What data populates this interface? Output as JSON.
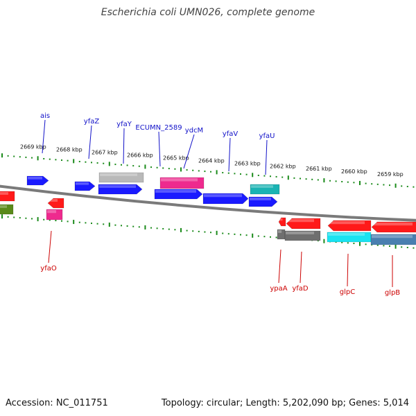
{
  "title": "Escherichia coli UMN026, complete genome",
  "footer": {
    "accession": "Accession: NC_011751",
    "summary": "Topology: circular; Length: 5,202,090 bp; Genes: 5,014"
  },
  "colors": {
    "backbone": "#7a7a7a",
    "ticks": "#1a8a1a",
    "top_label": "#1010c8",
    "bottom_label": "#cc0000",
    "blue": "#1a1aff",
    "red": "#ff1a1a",
    "gray": "#b9b9b9",
    "dark_gray": "#6f6f6f",
    "magenta": "#ee2a8e",
    "teal": "#1ab3b3",
    "cyan": "#19e3f1",
    "steel_blue": "#4a7fb0",
    "olive": "#5a8a1a"
  },
  "tick_labels": [
    "2669 kbp",
    "2668 kbp",
    "2667 kbp",
    "2666 kbp",
    "2665 kbp",
    "2664 kbp",
    "2663 kbp",
    "2662 kbp",
    "2661 kbp",
    "2660 kbp",
    "2659 kbp"
  ],
  "top_gene_labels": [
    "ais",
    "yfaZ",
    "yfaY",
    "ECUMN_2589",
    "ydcM",
    "yfaV",
    "yfaU"
  ],
  "bottom_gene_labels": [
    "yfaO",
    "ypaA",
    "yfaD",
    "glpC",
    "glpB"
  ]
}
